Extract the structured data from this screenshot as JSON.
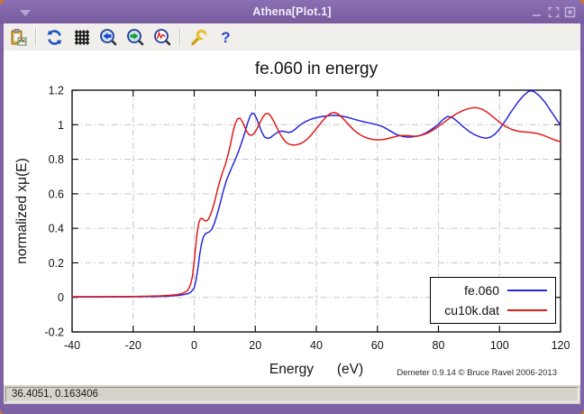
{
  "window": {
    "title": "Athena[Plot.1]"
  },
  "theme": {
    "titlebar_purple": "#7d63a6",
    "desktop_orange": "#cf7520",
    "toolbar_bg": "#f1efec",
    "status_bg": "#d7d3cb"
  },
  "toolbar": {
    "icons": [
      "save-plot",
      "replot",
      "grid",
      "zoom-back",
      "zoom-forward",
      "unzoom",
      "preferences",
      "help"
    ]
  },
  "statusbar": {
    "coords": "36.4051, 0.163406"
  },
  "chart_data": {
    "type": "line",
    "title": "fe.060 in energy",
    "xlabel": "Energy      (eV)",
    "ylabel": "normalized xμ(E)",
    "credit": "Demeter 0.9.14 © Bruce Ravel 2006-2013",
    "xlim": [
      -40,
      120
    ],
    "ylim": [
      -0.2,
      1.2
    ],
    "xticks": [
      -40,
      -20,
      0,
      20,
      40,
      60,
      80,
      100,
      120
    ],
    "xtick_labels": [
      "-40",
      "-20",
      "0",
      "20",
      "40",
      "60",
      "80",
      "100",
      "120"
    ],
    "yticks": [
      -0.2,
      0,
      0.2,
      0.4,
      0.6,
      0.8,
      1,
      1.2
    ],
    "ytick_labels": [
      "-0.2",
      "0",
      "0.2",
      "0.4",
      "0.6",
      "0.8",
      "1",
      "1.2"
    ],
    "grid": "dash-dot gray at major ticks, mirrored inward ticks on all borders",
    "legend_position": "inside bottom-right, boxed",
    "series": [
      {
        "name": "fe.060",
        "color": "#2828d8",
        "points": [
          [
            -40,
            0.002
          ],
          [
            -34,
            0.002
          ],
          [
            -28,
            0.003
          ],
          [
            -22,
            0.003
          ],
          [
            -16,
            0.004
          ],
          [
            -12,
            0.005
          ],
          [
            -9,
            0.007
          ],
          [
            -6,
            0.01
          ],
          [
            -4,
            0.014
          ],
          [
            -2,
            0.022
          ],
          [
            -1,
            0.032
          ],
          [
            0,
            0.055
          ],
          [
            0.6,
            0.1
          ],
          [
            1.2,
            0.17
          ],
          [
            1.8,
            0.25
          ],
          [
            2.4,
            0.31
          ],
          [
            3,
            0.35
          ],
          [
            3.6,
            0.368
          ],
          [
            4.2,
            0.373
          ],
          [
            5,
            0.38
          ],
          [
            5.8,
            0.395
          ],
          [
            6.6,
            0.43
          ],
          [
            7.5,
            0.48
          ],
          [
            8.5,
            0.545
          ],
          [
            9.5,
            0.615
          ],
          [
            10.5,
            0.675
          ],
          [
            11.5,
            0.72
          ],
          [
            12.5,
            0.76
          ],
          [
            13.5,
            0.8
          ],
          [
            14.5,
            0.845
          ],
          [
            15.5,
            0.895
          ],
          [
            16.5,
            0.95
          ],
          [
            17.5,
            1.01
          ],
          [
            18.3,
            1.05
          ],
          [
            19,
            1.068
          ],
          [
            19.7,
            1.062
          ],
          [
            20.5,
            1.035
          ],
          [
            21.3,
            0.995
          ],
          [
            22.2,
            0.955
          ],
          [
            23,
            0.93
          ],
          [
            24,
            0.921
          ],
          [
            25,
            0.926
          ],
          [
            26,
            0.94
          ],
          [
            27,
            0.953
          ],
          [
            28,
            0.962
          ],
          [
            29,
            0.963
          ],
          [
            30,
            0.958
          ],
          [
            31,
            0.955
          ],
          [
            32,
            0.96
          ],
          [
            33,
            0.973
          ],
          [
            34,
            0.988
          ],
          [
            35,
            1.002
          ],
          [
            36.5,
            1.018
          ],
          [
            38,
            1.03
          ],
          [
            40,
            1.041
          ],
          [
            42,
            1.048
          ],
          [
            44,
            1.052
          ],
          [
            46,
            1.054
          ],
          [
            48,
            1.051
          ],
          [
            50,
            1.044
          ],
          [
            52,
            1.034
          ],
          [
            54,
            1.024
          ],
          [
            56,
            1.015
          ],
          [
            58,
            1.008
          ],
          [
            60,
            1.0
          ],
          [
            62,
            0.987
          ],
          [
            64,
            0.966
          ],
          [
            66,
            0.945
          ],
          [
            68,
            0.933
          ],
          [
            70,
            0.928
          ],
          [
            72,
            0.931
          ],
          [
            74,
            0.938
          ],
          [
            76,
            0.953
          ],
          [
            78,
            0.976
          ],
          [
            80,
            1.003
          ],
          [
            81.5,
            1.03
          ],
          [
            83,
            1.048
          ],
          [
            84.5,
            1.043
          ],
          [
            86,
            1.022
          ],
          [
            88,
            0.99
          ],
          [
            90,
            0.962
          ],
          [
            92,
            0.941
          ],
          [
            94,
            0.927
          ],
          [
            95.5,
            0.922
          ],
          [
            97,
            0.928
          ],
          [
            98.5,
            0.945
          ],
          [
            100,
            0.975
          ],
          [
            102,
            1.025
          ],
          [
            104,
            1.08
          ],
          [
            106,
            1.13
          ],
          [
            108,
            1.172
          ],
          [
            109.5,
            1.193
          ],
          [
            110.5,
            1.196
          ],
          [
            111.5,
            1.19
          ],
          [
            113,
            1.168
          ],
          [
            115,
            1.128
          ],
          [
            117,
            1.075
          ],
          [
            119,
            1.022
          ],
          [
            120,
            1.0
          ]
        ]
      },
      {
        "name": "cu10k.dat",
        "color": "#e01c1c",
        "points": [
          [
            -40,
            0.004
          ],
          [
            -32,
            0.004
          ],
          [
            -26,
            0.005
          ],
          [
            -20,
            0.005
          ],
          [
            -15,
            0.007
          ],
          [
            -11,
            0.009
          ],
          [
            -8,
            0.012
          ],
          [
            -6,
            0.016
          ],
          [
            -4.5,
            0.02
          ],
          [
            -3.5,
            0.026
          ],
          [
            -2.5,
            0.035
          ],
          [
            -1.8,
            0.05
          ],
          [
            -1.2,
            0.075
          ],
          [
            -0.6,
            0.12
          ],
          [
            0,
            0.21
          ],
          [
            0.5,
            0.3
          ],
          [
            1,
            0.38
          ],
          [
            1.5,
            0.43
          ],
          [
            2,
            0.455
          ],
          [
            2.6,
            0.458
          ],
          [
            3.2,
            0.448
          ],
          [
            3.8,
            0.442
          ],
          [
            4.4,
            0.447
          ],
          [
            5,
            0.465
          ],
          [
            5.8,
            0.5
          ],
          [
            6.6,
            0.55
          ],
          [
            7.5,
            0.615
          ],
          [
            8.4,
            0.675
          ],
          [
            9.3,
            0.725
          ],
          [
            10.2,
            0.77
          ],
          [
            11,
            0.82
          ],
          [
            11.8,
            0.88
          ],
          [
            12.6,
            0.95
          ],
          [
            13.4,
            1.005
          ],
          [
            14.2,
            1.034
          ],
          [
            15,
            1.038
          ],
          [
            15.8,
            1.018
          ],
          [
            16.6,
            0.985
          ],
          [
            17.4,
            0.955
          ],
          [
            18.2,
            0.94
          ],
          [
            19,
            0.94
          ],
          [
            19.8,
            0.955
          ],
          [
            20.6,
            0.978
          ],
          [
            21.5,
            1.01
          ],
          [
            22.4,
            1.042
          ],
          [
            23.3,
            1.063
          ],
          [
            24.2,
            1.066
          ],
          [
            25,
            1.052
          ],
          [
            26,
            1.022
          ],
          [
            27,
            0.985
          ],
          [
            28,
            0.95
          ],
          [
            29,
            0.921
          ],
          [
            30,
            0.9
          ],
          [
            31,
            0.888
          ],
          [
            32,
            0.883
          ],
          [
            33,
            0.883
          ],
          [
            34,
            0.886
          ],
          [
            35,
            0.892
          ],
          [
            36,
            0.902
          ],
          [
            37,
            0.916
          ],
          [
            38,
            0.934
          ],
          [
            39,
            0.955
          ],
          [
            40,
            0.978
          ],
          [
            41,
            1.0
          ],
          [
            42,
            1.022
          ],
          [
            43,
            1.042
          ],
          [
            44,
            1.058
          ],
          [
            45,
            1.068
          ],
          [
            46,
            1.07
          ],
          [
            47,
            1.064
          ],
          [
            48,
            1.049
          ],
          [
            49.5,
            1.022
          ],
          [
            51,
            0.992
          ],
          [
            52.5,
            0.966
          ],
          [
            54,
            0.946
          ],
          [
            55.5,
            0.931
          ],
          [
            57,
            0.921
          ],
          [
            58.5,
            0.915
          ],
          [
            60,
            0.912
          ],
          [
            61.5,
            0.913
          ],
          [
            63,
            0.918
          ],
          [
            64.5,
            0.925
          ],
          [
            66,
            0.932
          ],
          [
            67.5,
            0.937
          ],
          [
            69,
            0.938
          ],
          [
            70.5,
            0.936
          ],
          [
            72,
            0.933
          ],
          [
            73.5,
            0.935
          ],
          [
            75,
            0.942
          ],
          [
            76.5,
            0.952
          ],
          [
            78,
            0.966
          ],
          [
            80,
            0.99
          ],
          [
            82,
            1.016
          ],
          [
            84,
            1.042
          ],
          [
            86,
            1.064
          ],
          [
            88,
            1.082
          ],
          [
            90,
            1.094
          ],
          [
            91.5,
            1.099
          ],
          [
            93,
            1.097
          ],
          [
            94.5,
            1.088
          ],
          [
            96,
            1.072
          ],
          [
            98,
            1.044
          ],
          [
            100,
            1.014
          ],
          [
            102,
            0.99
          ],
          [
            104,
            0.973
          ],
          [
            106,
            0.963
          ],
          [
            108,
            0.958
          ],
          [
            110,
            0.956
          ],
          [
            112,
            0.951
          ],
          [
            114,
            0.941
          ],
          [
            116,
            0.927
          ],
          [
            118,
            0.912
          ],
          [
            120,
            0.901
          ]
        ]
      }
    ]
  }
}
